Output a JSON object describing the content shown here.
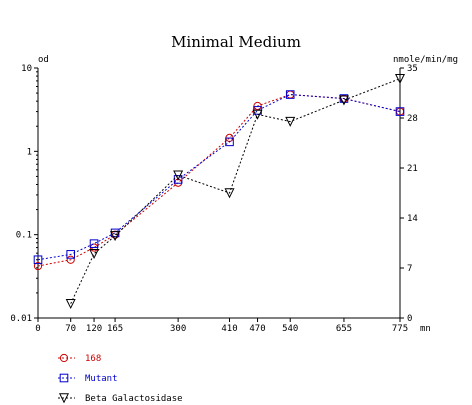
{
  "chart_data": {
    "type": "line",
    "title": "Minimal Medium",
    "y_left_label": "od",
    "y_right_label": "nmole/min/mg",
    "x_unit_label": "mn",
    "x_ticks": [
      0,
      70,
      120,
      165,
      300,
      410,
      470,
      540,
      655,
      775
    ],
    "y_left_scale": "log",
    "y_left_ticks": [
      {
        "value": 0.01,
        "label": "0.01"
      },
      {
        "value": 0.1,
        "label": "0.1"
      },
      {
        "value": 1,
        "label": "1"
      },
      {
        "value": 10,
        "label": "10"
      }
    ],
    "y_left_range": [
      0.01,
      10
    ],
    "y_right_scale": "linear",
    "y_right_ticks": [
      0,
      7,
      14,
      21,
      28,
      35
    ],
    "y_right_range": [
      0,
      35
    ],
    "grid": false,
    "legend_placement": "below",
    "series": [
      {
        "name": "168",
        "axis": "left",
        "color": "#cc0000",
        "marker": "circle",
        "line": "dashed",
        "x": [
          0,
          70,
          120,
          165,
          300,
          410,
          470,
          540,
          655,
          775
        ],
        "y": [
          0.042,
          0.05,
          0.07,
          0.1,
          0.42,
          1.45,
          3.5,
          4.8,
          4.3,
          3.0
        ]
      },
      {
        "name": "Mutant",
        "axis": "left",
        "color": "#0000cc",
        "marker": "square",
        "line": "dashed",
        "x": [
          0,
          70,
          120,
          165,
          300,
          410,
          470,
          540,
          655,
          775
        ],
        "y": [
          0.05,
          0.058,
          0.078,
          0.105,
          0.46,
          1.3,
          3.1,
          4.8,
          4.3,
          3.0
        ]
      },
      {
        "name": "Beta Galactosidase",
        "axis": "right",
        "color": "#000000",
        "marker": "triangle-down",
        "line": "dashed",
        "x": [
          70,
          120,
          165,
          300,
          410,
          470,
          540,
          655,
          775
        ],
        "y": [
          2,
          9,
          11.5,
          20,
          17.5,
          28.5,
          27.5,
          30.5,
          33.5
        ]
      }
    ]
  }
}
